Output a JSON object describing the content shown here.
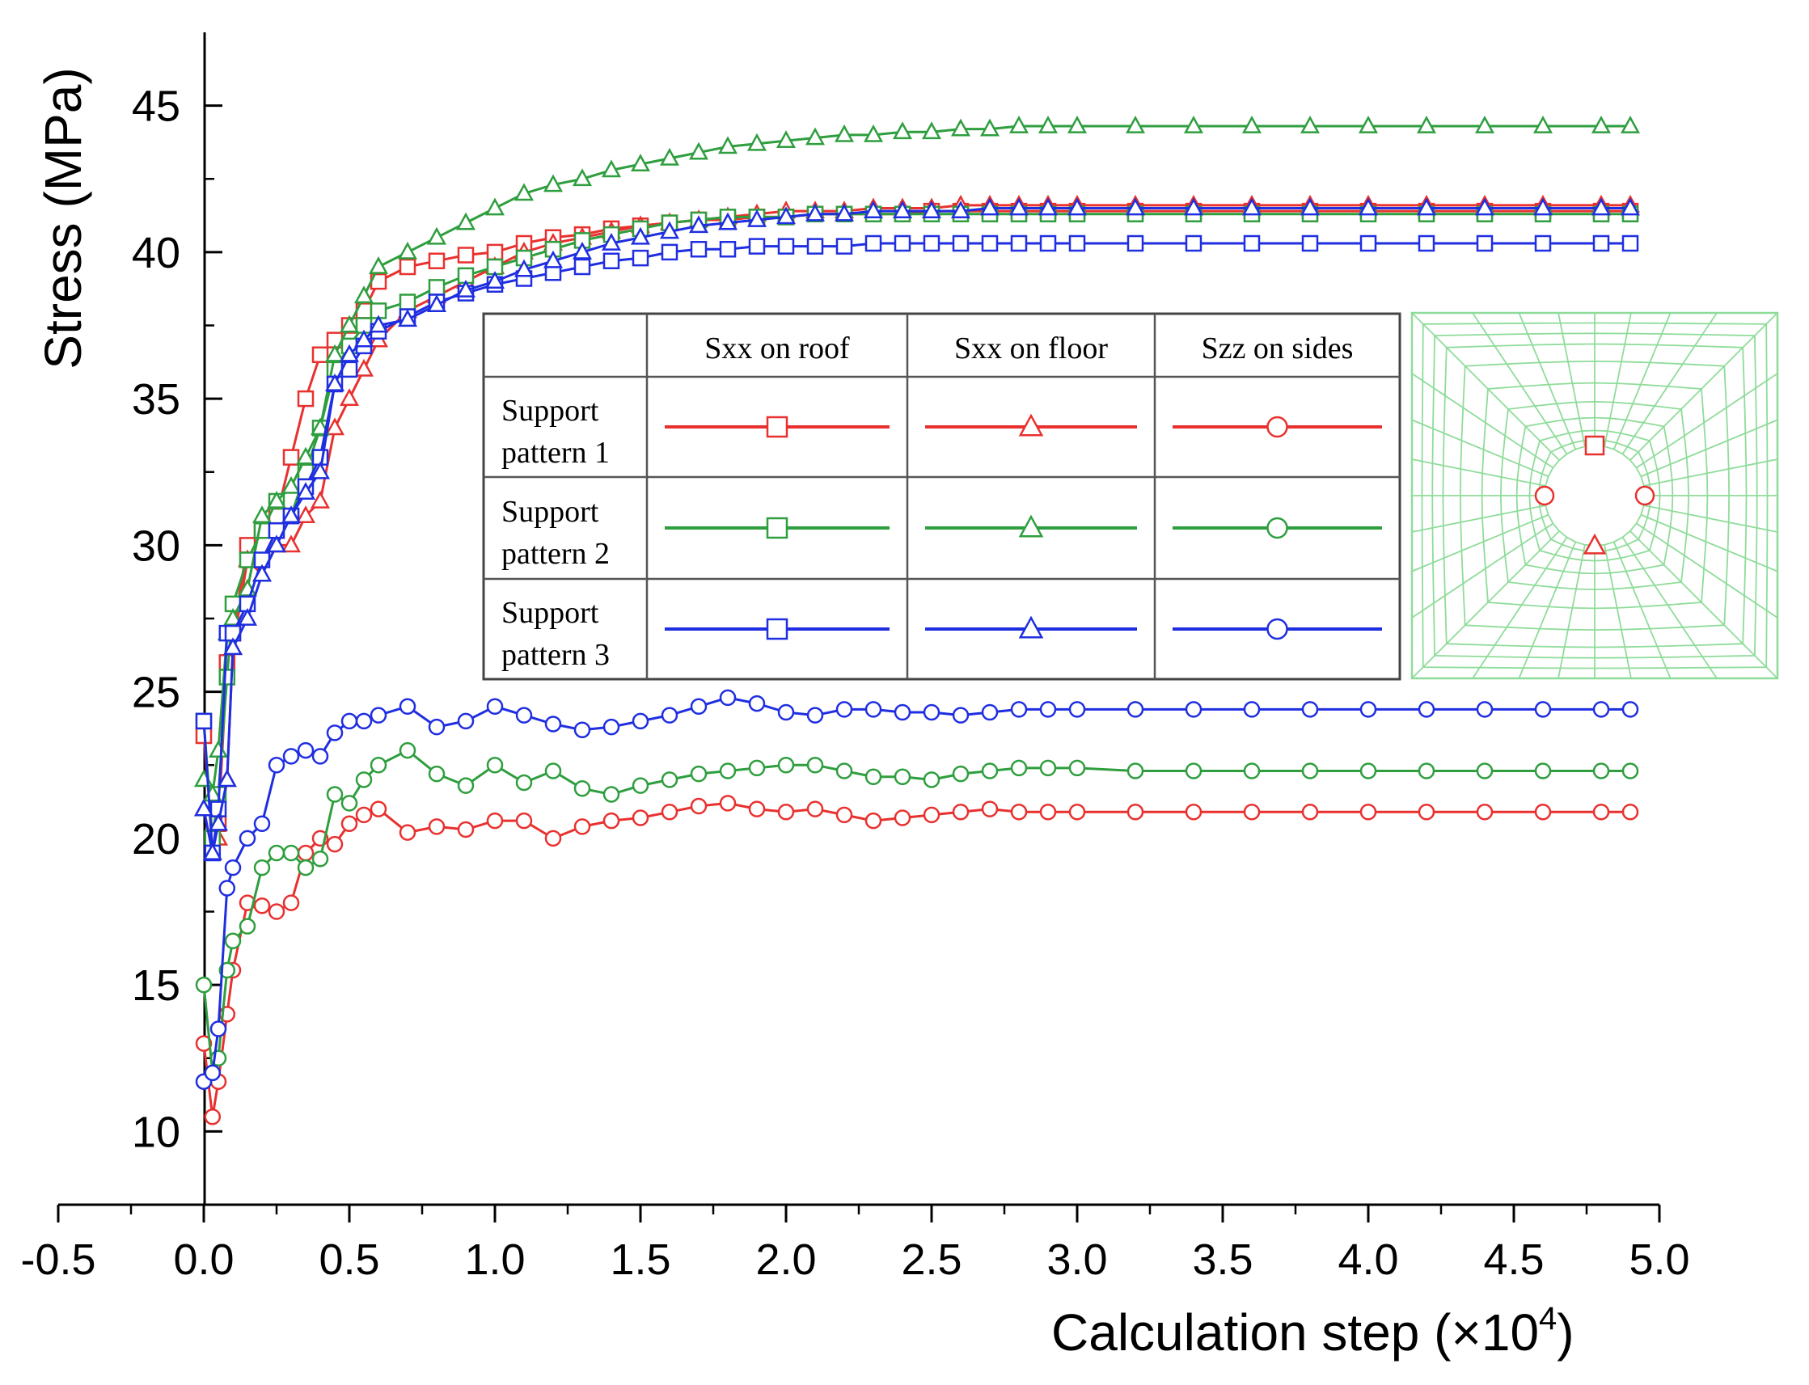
{
  "chart_data": {
    "type": "line",
    "title": "",
    "xlabel": "Calculation step (×10",
    "xlabel_exponent": "4",
    "xlabel_close": ")",
    "ylabel": "Stress (MPa)",
    "xlim": [
      -0.5,
      5.0
    ],
    "ylim": [
      7.5,
      47.5
    ],
    "xticks": [
      "-0.5",
      "0.0",
      "0.5",
      "1.0",
      "1.5",
      "2.0",
      "2.5",
      "3.0",
      "3.5",
      "4.0",
      "4.5",
      "5.0"
    ],
    "yticks": [
      "10",
      "15",
      "20",
      "25",
      "30",
      "35",
      "40",
      "45"
    ],
    "grid": false,
    "x": [
      0.0,
      0.03,
      0.05,
      0.08,
      0.1,
      0.15,
      0.2,
      0.25,
      0.3,
      0.35,
      0.4,
      0.45,
      0.5,
      0.55,
      0.6,
      0.7,
      0.8,
      0.9,
      1.0,
      1.1,
      1.2,
      1.3,
      1.4,
      1.5,
      1.6,
      1.7,
      1.8,
      1.9,
      2.0,
      2.1,
      2.2,
      2.3,
      2.4,
      2.5,
      2.6,
      2.7,
      2.8,
      2.9,
      3.0,
      3.2,
      3.4,
      3.6,
      3.8,
      4.0,
      4.2,
      4.4,
      4.6,
      4.8,
      4.9
    ],
    "series": [
      {
        "name": "Support pattern 1 – Sxx on roof",
        "color": "#e8312f",
        "marker": "square",
        "values": [
          23.5,
          20.0,
          20.5,
          26.0,
          27.0,
          30.0,
          30.5,
          31.0,
          33.0,
          35.0,
          36.5,
          37.0,
          37.5,
          38.0,
          39.0,
          39.5,
          39.7,
          39.9,
          40.0,
          40.3,
          40.5,
          40.6,
          40.8,
          40.9,
          41.0,
          41.1,
          41.1,
          41.2,
          41.2,
          41.3,
          41.3,
          41.3,
          41.3,
          41.4,
          41.4,
          41.4,
          41.4,
          41.4,
          41.4,
          41.4,
          41.4,
          41.4,
          41.4,
          41.4,
          41.4,
          41.4,
          41.4,
          41.4,
          41.4
        ]
      },
      {
        "name": "Support pattern 1 – Sxx on floor",
        "color": "#e8312f",
        "marker": "triangle",
        "values": [
          21.0,
          19.5,
          20.0,
          22.0,
          26.5,
          29.5,
          29.0,
          30.0,
          30.0,
          31.0,
          31.5,
          34.0,
          35.0,
          36.0,
          37.0,
          38.0,
          38.5,
          39.0,
          39.5,
          40.0,
          40.3,
          40.5,
          40.7,
          40.9,
          41.0,
          41.1,
          41.2,
          41.3,
          41.4,
          41.4,
          41.4,
          41.5,
          41.5,
          41.5,
          41.6,
          41.6,
          41.6,
          41.6,
          41.6,
          41.6,
          41.6,
          41.6,
          41.6,
          41.6,
          41.6,
          41.6,
          41.6,
          41.6,
          41.6
        ]
      },
      {
        "name": "Support pattern 1 – Szz on sides",
        "color": "#e8312f",
        "marker": "circle",
        "values": [
          13.0,
          10.5,
          11.7,
          14.0,
          15.5,
          17.8,
          17.7,
          17.5,
          17.8,
          19.5,
          20.0,
          19.8,
          20.5,
          20.8,
          21.0,
          20.2,
          20.4,
          20.3,
          20.6,
          20.6,
          20.0,
          20.4,
          20.6,
          20.7,
          20.9,
          21.1,
          21.2,
          21.0,
          20.9,
          21.0,
          20.8,
          20.6,
          20.7,
          20.8,
          20.9,
          21.0,
          20.9,
          20.9,
          20.9,
          20.9,
          20.9,
          20.9,
          20.9,
          20.9,
          20.9,
          20.9,
          20.9,
          20.9,
          20.9
        ]
      },
      {
        "name": "Support pattern 2 – Sxx on roof",
        "color": "#2e9e3e",
        "marker": "square",
        "values": [
          24.0,
          20.0,
          21.5,
          25.5,
          28.0,
          29.5,
          30.5,
          31.5,
          31.0,
          32.5,
          34.0,
          36.0,
          36.8,
          37.5,
          38.0,
          38.3,
          38.8,
          39.2,
          39.5,
          39.8,
          40.1,
          40.4,
          40.6,
          40.8,
          41.0,
          41.1,
          41.2,
          41.2,
          41.2,
          41.3,
          41.3,
          41.3,
          41.3,
          41.3,
          41.3,
          41.3,
          41.3,
          41.3,
          41.3,
          41.3,
          41.3,
          41.3,
          41.3,
          41.3,
          41.3,
          41.3,
          41.3,
          41.3,
          41.3
        ]
      },
      {
        "name": "Support pattern 2 – Sxx on floor",
        "color": "#2e9e3e",
        "marker": "triangle",
        "values": [
          22.0,
          21.5,
          23.0,
          27.0,
          27.5,
          28.5,
          31.0,
          31.5,
          32.0,
          33.0,
          34.0,
          36.5,
          37.5,
          38.5,
          39.5,
          40.0,
          40.5,
          41.0,
          41.5,
          42.0,
          42.3,
          42.5,
          42.8,
          43.0,
          43.2,
          43.4,
          43.6,
          43.7,
          43.8,
          43.9,
          44.0,
          44.0,
          44.1,
          44.1,
          44.2,
          44.2,
          44.3,
          44.3,
          44.3,
          44.3,
          44.3,
          44.3,
          44.3,
          44.3,
          44.3,
          44.3,
          44.3,
          44.3,
          44.3
        ]
      },
      {
        "name": "Support pattern 2 – Szz on sides",
        "color": "#2e9e3e",
        "marker": "circle",
        "values": [
          15.0,
          12.0,
          12.5,
          15.5,
          16.5,
          17.0,
          19.0,
          19.5,
          19.5,
          19.0,
          19.3,
          21.5,
          21.2,
          22.0,
          22.5,
          23.0,
          22.2,
          21.8,
          22.5,
          21.9,
          22.3,
          21.7,
          21.5,
          21.8,
          22.0,
          22.2,
          22.3,
          22.4,
          22.5,
          22.5,
          22.3,
          22.1,
          22.1,
          22.0,
          22.2,
          22.3,
          22.4,
          22.4,
          22.4,
          22.3,
          22.3,
          22.3,
          22.3,
          22.3,
          22.3,
          22.3,
          22.3,
          22.3,
          22.3
        ]
      },
      {
        "name": "Support pattern 3 – Sxx on roof",
        "color": "#1f2ee0",
        "marker": "square",
        "values": [
          24.0,
          19.5,
          21.0,
          27.0,
          27.0,
          28.0,
          29.5,
          30.5,
          31.0,
          32.0,
          33.0,
          35.5,
          36.0,
          36.8,
          37.3,
          37.8,
          38.3,
          38.6,
          38.9,
          39.1,
          39.3,
          39.5,
          39.7,
          39.8,
          40.0,
          40.1,
          40.1,
          40.2,
          40.2,
          40.2,
          40.2,
          40.3,
          40.3,
          40.3,
          40.3,
          40.3,
          40.3,
          40.3,
          40.3,
          40.3,
          40.3,
          40.3,
          40.3,
          40.3,
          40.3,
          40.3,
          40.3,
          40.3,
          40.3
        ]
      },
      {
        "name": "Support pattern 3 – Sxx on floor",
        "color": "#1f2ee0",
        "marker": "triangle",
        "values": [
          21.0,
          19.5,
          20.5,
          22.0,
          26.5,
          27.5,
          29.0,
          30.0,
          31.0,
          31.8,
          32.5,
          35.5,
          36.5,
          37.0,
          37.5,
          37.7,
          38.2,
          38.7,
          39.0,
          39.4,
          39.7,
          40.0,
          40.3,
          40.5,
          40.7,
          40.9,
          41.0,
          41.1,
          41.2,
          41.3,
          41.3,
          41.4,
          41.4,
          41.4,
          41.4,
          41.5,
          41.5,
          41.5,
          41.5,
          41.5,
          41.5,
          41.5,
          41.5,
          41.5,
          41.5,
          41.5,
          41.5,
          41.5,
          41.5
        ]
      },
      {
        "name": "Support pattern 3 – Szz on sides",
        "color": "#1f2ee0",
        "marker": "circle",
        "values": [
          11.7,
          12.0,
          13.5,
          18.3,
          19.0,
          20.0,
          20.5,
          22.5,
          22.8,
          23.0,
          22.8,
          23.6,
          24.0,
          24.0,
          24.2,
          24.5,
          23.8,
          24.0,
          24.5,
          24.2,
          23.9,
          23.7,
          23.8,
          24.0,
          24.2,
          24.5,
          24.8,
          24.6,
          24.3,
          24.2,
          24.4,
          24.4,
          24.3,
          24.3,
          24.2,
          24.3,
          24.4,
          24.4,
          24.4,
          24.4,
          24.4,
          24.4,
          24.4,
          24.4,
          24.4,
          24.4,
          24.4,
          24.4,
          24.4
        ]
      }
    ],
    "legend": {
      "placement": "center-right",
      "columns": [
        "Sxx on roof",
        "Sxx on floor",
        "Szz on sides"
      ],
      "rows": [
        {
          "line1": "Support",
          "line2": "pattern 1",
          "color": "#e8312f"
        },
        {
          "line1": "Support",
          "line2": "pattern 2",
          "color": "#2e9e3e"
        },
        {
          "line1": "Support",
          "line2": "pattern 3",
          "color": "#1f2ee0"
        }
      ],
      "markers": [
        "square",
        "triangle",
        "circle"
      ]
    },
    "inset": {
      "description": "mesh",
      "color": "#8fdc9a",
      "marker_color": "#e8312f",
      "monitor_points": [
        "square",
        "triangle",
        "circle",
        "circle"
      ]
    }
  }
}
